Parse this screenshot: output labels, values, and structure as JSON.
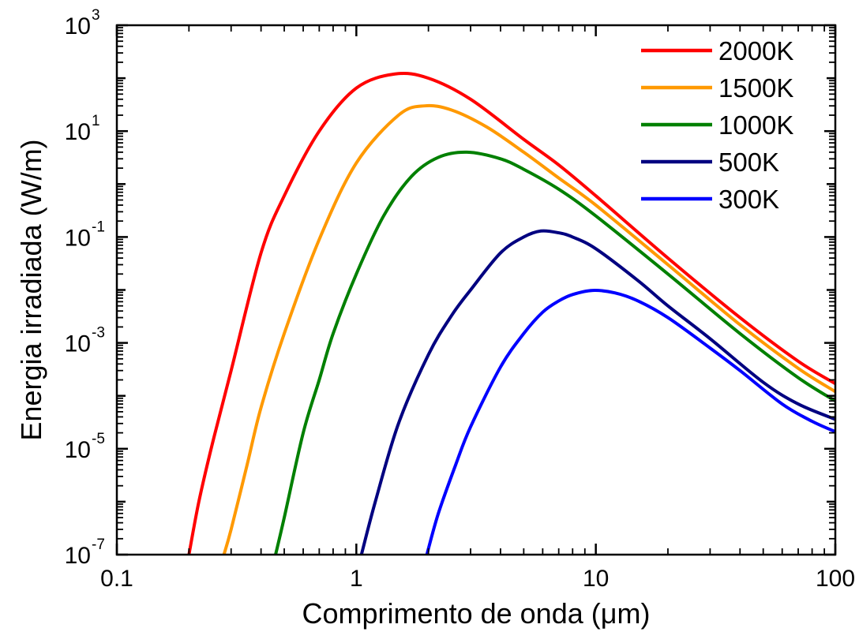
{
  "chart_data": {
    "type": "line",
    "xlabel": "Comprimento de onda (μm)",
    "ylabel": "Energia irradiada (W/m)",
    "x_scale": "log",
    "y_scale": "log",
    "xlim": [
      0.1,
      100
    ],
    "ylim": [
      1e-07,
      1000
    ],
    "x_ticks": [
      {
        "value": 0.1,
        "label": "0.1"
      },
      {
        "value": 1,
        "label": "1"
      },
      {
        "value": 10,
        "label": "10"
      },
      {
        "value": 100,
        "label": "100"
      }
    ],
    "y_ticks": [
      {
        "value": 1e-07,
        "base": "10",
        "exp": "-7"
      },
      {
        "value": 1e-05,
        "base": "10",
        "exp": "-5"
      },
      {
        "value": 0.001,
        "base": "10",
        "exp": "-3"
      },
      {
        "value": 0.1,
        "base": "10",
        "exp": "-1"
      },
      {
        "value": 10,
        "base": "10",
        "exp": "1"
      },
      {
        "value": 1000,
        "base": "10",
        "exp": "3"
      }
    ],
    "grid": false,
    "legend_position": "top-right",
    "series": [
      {
        "name": "2000K",
        "color": "#ff0000",
        "x": [
          0.2,
          0.22,
          0.25,
          0.3,
          0.4,
          0.5,
          0.7,
          1.0,
          1.45,
          2.0,
          3.0,
          5.0,
          7.0,
          10,
          20,
          40,
          70,
          100
        ],
        "y": [
          1e-07,
          1e-06,
          1.2e-05,
          0.0003,
          0.05,
          0.6,
          10,
          65,
          120,
          100,
          40,
          7,
          2.3,
          0.6,
          0.04,
          0.003,
          0.00045,
          0.00017
        ]
      },
      {
        "name": "1500K",
        "color": "#ff9900",
        "x": [
          0.28,
          0.3,
          0.35,
          0.4,
          0.5,
          0.7,
          1.0,
          1.5,
          1.93,
          2.5,
          3.5,
          5.0,
          7.0,
          10,
          20,
          40,
          70,
          100
        ],
        "y": [
          1e-07,
          3e-07,
          5e-06,
          6e-05,
          0.0015,
          0.09,
          2.5,
          20,
          30,
          25,
          12,
          4,
          1.3,
          0.4,
          0.03,
          0.0022,
          0.00033,
          0.00012
        ]
      },
      {
        "name": "1000K",
        "color": "#008000",
        "x": [
          0.46,
          0.5,
          0.6,
          0.7,
          0.8,
          1.0,
          1.3,
          1.7,
          2.2,
          2.9,
          4.0,
          5.0,
          7.0,
          10,
          20,
          40,
          70,
          100
        ],
        "y": [
          1e-07,
          5e-07,
          2e-05,
          0.0002,
          0.0015,
          0.02,
          0.25,
          1.4,
          3.2,
          4.0,
          3.0,
          1.9,
          0.8,
          0.25,
          0.02,
          0.0015,
          0.00022,
          8e-05
        ]
      },
      {
        "name": "500K",
        "color": "#000080",
        "x": [
          1.05,
          1.2,
          1.5,
          2.0,
          2.5,
          3.0,
          4.0,
          5.0,
          5.9,
          7.0,
          8.0,
          10,
          15,
          20,
          30,
          50,
          70,
          100
        ],
        "y": [
          1e-07,
          1e-06,
          3e-05,
          0.0006,
          0.0033,
          0.01,
          0.05,
          0.1,
          0.13,
          0.12,
          0.1,
          0.06,
          0.015,
          0.005,
          0.0012,
          0.00018,
          7e-05,
          3.6e-05
        ]
      },
      {
        "name": "300K",
        "color": "#0000ff",
        "x": [
          1.97,
          2.2,
          2.6,
          3.0,
          4.0,
          5.0,
          6.0,
          7.0,
          8.0,
          9.7,
          12,
          15,
          20,
          30,
          40,
          60,
          80,
          100
        ],
        "y": [
          1e-07,
          6e-07,
          5e-06,
          2.6e-05,
          0.00035,
          0.0015,
          0.0038,
          0.0062,
          0.0082,
          0.0098,
          0.0088,
          0.0062,
          0.003,
          0.0008,
          0.0003,
          7e-05,
          3.3e-05,
          2.1e-05
        ]
      }
    ]
  }
}
